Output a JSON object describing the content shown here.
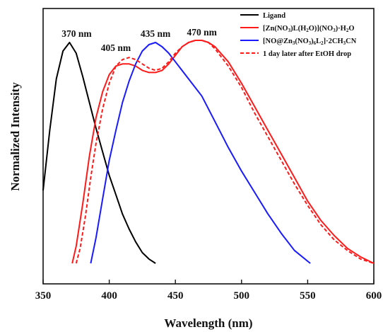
{
  "chart_data": {
    "type": "line",
    "title": "",
    "xlabel": "Wavelength (nm)",
    "ylabel": "Normalized Intensity",
    "xlim": [
      350,
      600
    ],
    "ylim": [
      0,
      1.1
    ],
    "xticks": [
      350,
      400,
      450,
      500,
      550,
      600
    ],
    "yticks_shown": false,
    "grid": false,
    "legend_position": "top-right",
    "series": [
      {
        "name": "Ligand",
        "color": "#000000",
        "dash": "solid",
        "x": [
          350,
          355,
          360,
          365,
          370,
          375,
          380,
          385,
          390,
          395,
          400,
          405,
          410,
          415,
          420,
          425,
          430,
          435
        ],
        "y": [
          0.34,
          0.62,
          0.86,
          0.99,
          1.03,
          0.98,
          0.87,
          0.75,
          0.63,
          0.52,
          0.41,
          0.32,
          0.23,
          0.16,
          0.1,
          0.05,
          0.02,
          0.0
        ]
      },
      {
        "name": "[Zn(NO3)L(H2O)](NO3)·H2O",
        "color": "#ff1a1a",
        "dash": "solid",
        "x": [
          372,
          375,
          380,
          385,
          390,
          395,
          400,
          405,
          410,
          415,
          420,
          425,
          430,
          435,
          440,
          445,
          450,
          455,
          460,
          465,
          470,
          475,
          480,
          490,
          500,
          510,
          520,
          530,
          540,
          550,
          560,
          570,
          580,
          590,
          600
        ],
        "y": [
          0.0,
          0.08,
          0.28,
          0.5,
          0.68,
          0.8,
          0.88,
          0.92,
          0.93,
          0.93,
          0.92,
          0.9,
          0.89,
          0.89,
          0.9,
          0.93,
          0.97,
          1.01,
          1.03,
          1.04,
          1.04,
          1.03,
          1.01,
          0.94,
          0.84,
          0.73,
          0.62,
          0.51,
          0.4,
          0.29,
          0.2,
          0.13,
          0.07,
          0.03,
          0.0
        ]
      },
      {
        "name": "[NO@Zn3(NO3)6L2]·2CH3CN",
        "color": "#1a1aff",
        "dash": "solid",
        "x": [
          386,
          390,
          395,
          400,
          405,
          410,
          415,
          420,
          425,
          430,
          435,
          440,
          445,
          450,
          460,
          470,
          480,
          490,
          500,
          510,
          520,
          530,
          540,
          552
        ],
        "y": [
          0.0,
          0.12,
          0.3,
          0.48,
          0.62,
          0.75,
          0.85,
          0.93,
          0.99,
          1.02,
          1.03,
          1.01,
          0.98,
          0.94,
          0.86,
          0.78,
          0.66,
          0.54,
          0.43,
          0.33,
          0.23,
          0.14,
          0.06,
          0.0
        ]
      },
      {
        "name": "1 day later after EtOH drop",
        "color": "#ff1a1a",
        "dash": "dashed",
        "x": [
          375,
          378,
          382,
          386,
          390,
          395,
          400,
          405,
          410,
          415,
          420,
          425,
          430,
          435,
          440,
          445,
          450,
          455,
          460,
          465,
          470,
          475,
          480,
          490,
          500,
          510,
          520,
          530,
          540,
          550,
          560,
          570,
          580,
          590,
          600
        ],
        "y": [
          0.0,
          0.07,
          0.22,
          0.4,
          0.56,
          0.72,
          0.84,
          0.92,
          0.95,
          0.96,
          0.95,
          0.93,
          0.91,
          0.9,
          0.91,
          0.94,
          0.98,
          1.01,
          1.03,
          1.04,
          1.04,
          1.03,
          1.0,
          0.92,
          0.82,
          0.7,
          0.59,
          0.48,
          0.37,
          0.27,
          0.18,
          0.11,
          0.06,
          0.02,
          0.0
        ]
      }
    ],
    "annotations": [
      {
        "text": "370 nm",
        "x": 370
      },
      {
        "text": "405 nm",
        "x": 405
      },
      {
        "text": "435 nm",
        "x": 435
      },
      {
        "text": "470 nm",
        "x": 470
      }
    ]
  }
}
